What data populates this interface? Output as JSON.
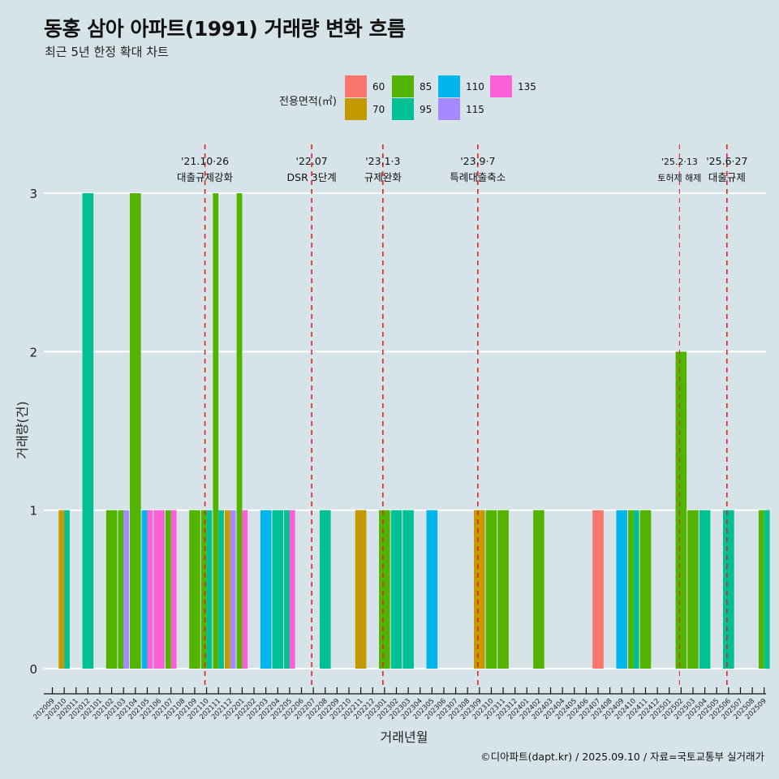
{
  "title": "동홍 삼아 아파트(1991) 거래량 변화 흐름",
  "subtitle": "최근 5년 한정 확대 차트",
  "caption": "©디아파트(dapt.kr) / 2025.09.10 / 자료=국토교통부 실거래가",
  "chart_data": {
    "type": "bar",
    "xlabel": "거래년월",
    "ylabel": "거래량(건)",
    "ylim": [
      0,
      3
    ],
    "yticks": [
      0,
      1,
      2,
      3
    ],
    "grid": "horizontal",
    "legend": {
      "title": "전용면적(㎡)",
      "position": "top",
      "items": [
        {
          "name": "60",
          "color": "#f8766d"
        },
        {
          "name": "70",
          "color": "#c49a00"
        },
        {
          "name": "85",
          "color": "#53b400"
        },
        {
          "name": "95",
          "color": "#00c094"
        },
        {
          "name": "110",
          "color": "#00b6eb"
        },
        {
          "name": "115",
          "color": "#a58aff"
        },
        {
          "name": "135",
          "color": "#fb61d7"
        }
      ]
    },
    "categories": [
      "202009",
      "202010",
      "202011",
      "202012",
      "202101",
      "202102",
      "202103",
      "202104",
      "202105",
      "202106",
      "202107",
      "202108",
      "202109",
      "202110",
      "202111",
      "202112",
      "202201",
      "202202",
      "202203",
      "202204",
      "202205",
      "202206",
      "202207",
      "202208",
      "202209",
      "202210",
      "202211",
      "202212",
      "202301",
      "202302",
      "202303",
      "202304",
      "202305",
      "202306",
      "202307",
      "202308",
      "202309",
      "202310",
      "202311",
      "202312",
      "202401",
      "202402",
      "202403",
      "202404",
      "202405",
      "202406",
      "202407",
      "202408",
      "202409",
      "202410",
      "202411",
      "202412",
      "202501",
      "202502",
      "202503",
      "202504",
      "202505",
      "202506",
      "202507",
      "202508",
      "202509"
    ],
    "bars": [
      {
        "month": "202010",
        "values": {
          "70": 1,
          "95": 1
        }
      },
      {
        "month": "202012",
        "values": {
          "95": 3
        }
      },
      {
        "month": "202102",
        "values": {
          "85": 1
        }
      },
      {
        "month": "202103",
        "values": {
          "85": 1,
          "115": 1
        }
      },
      {
        "month": "202104",
        "values": {
          "85": 3
        }
      },
      {
        "month": "202105",
        "values": {
          "110": 1,
          "135": 1
        }
      },
      {
        "month": "202106",
        "values": {
          "135": 1
        }
      },
      {
        "month": "202107",
        "values": {
          "85": 1,
          "135": 1
        }
      },
      {
        "month": "202109",
        "values": {
          "85": 1
        }
      },
      {
        "month": "202110",
        "values": {
          "85": 1,
          "95": 1
        }
      },
      {
        "month": "202111",
        "values": {
          "85": 3,
          "95": 1
        }
      },
      {
        "month": "202112",
        "values": {
          "70": 1,
          "115": 1
        }
      },
      {
        "month": "202201",
        "values": {
          "85": 3,
          "135": 1
        }
      },
      {
        "month": "202203",
        "values": {
          "110": 1
        }
      },
      {
        "month": "202204",
        "values": {
          "95": 1
        }
      },
      {
        "month": "202205",
        "values": {
          "95": 1,
          "135": 1
        }
      },
      {
        "month": "202208",
        "values": {
          "95": 1
        }
      },
      {
        "month": "202211",
        "values": {
          "70": 1
        }
      },
      {
        "month": "202301",
        "values": {
          "85": 1
        }
      },
      {
        "month": "202302",
        "values": {
          "95": 1
        }
      },
      {
        "month": "202303",
        "values": {
          "95": 1
        }
      },
      {
        "month": "202305",
        "values": {
          "110": 1
        }
      },
      {
        "month": "202309",
        "values": {
          "70": 1
        }
      },
      {
        "month": "202310",
        "values": {
          "85": 1
        }
      },
      {
        "month": "202311",
        "values": {
          "85": 1
        }
      },
      {
        "month": "202402",
        "values": {
          "85": 1
        }
      },
      {
        "month": "202407",
        "values": {
          "60": 1
        }
      },
      {
        "month": "202409",
        "values": {
          "110": 1
        }
      },
      {
        "month": "202410",
        "values": {
          "85": 1,
          "95": 1
        }
      },
      {
        "month": "202411",
        "values": {
          "85": 1
        }
      },
      {
        "month": "202502",
        "values": {
          "85": 2
        }
      },
      {
        "month": "202503",
        "values": {
          "85": 1
        }
      },
      {
        "month": "202504",
        "values": {
          "95": 1
        }
      },
      {
        "month": "202506",
        "values": {
          "95": 1
        }
      },
      {
        "month": "202509",
        "values": {
          "85": 1,
          "95": 1
        }
      }
    ],
    "events": [
      {
        "date": "202110",
        "line1": "'21.10·26",
        "line2": "대출규제강화"
      },
      {
        "date": "202207",
        "line1": "'22.07",
        "line2": "DSR 3단계"
      },
      {
        "date": "202301",
        "line1": "'23.1·3",
        "line2": "규제완화"
      },
      {
        "date": "202309",
        "line1": "'23.9·7",
        "line2": "특례대출축소"
      },
      {
        "date": "202502",
        "line1": "'25.2·13",
        "line2": "토허제 해제"
      },
      {
        "date": "202506",
        "line1": "'25.6·27",
        "line2": "대출규제"
      }
    ]
  }
}
